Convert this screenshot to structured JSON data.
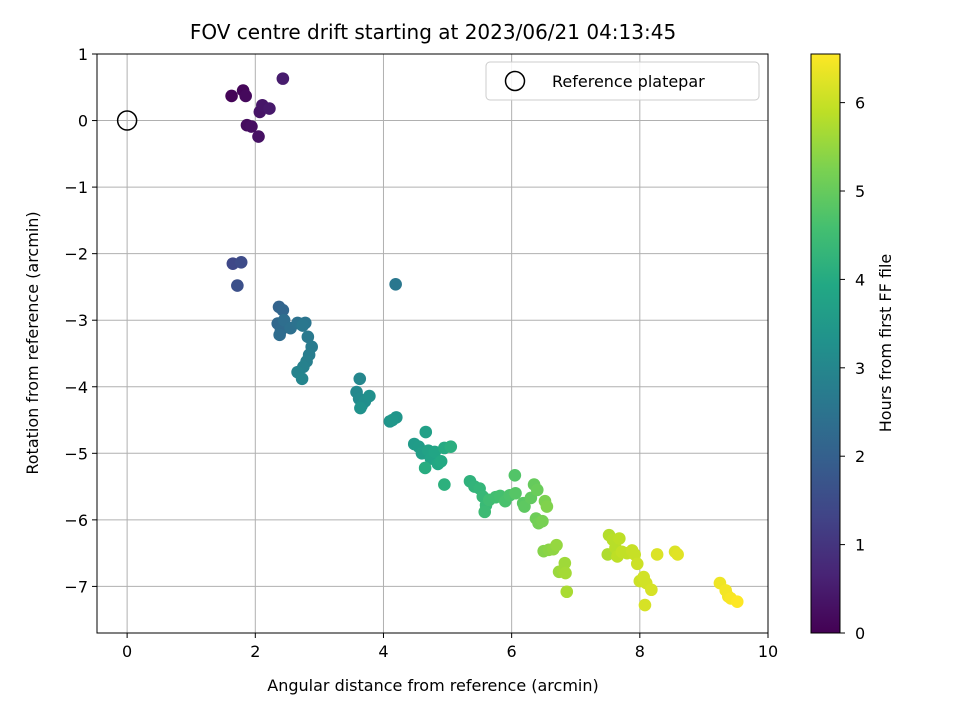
{
  "chart_data": {
    "type": "scatter",
    "title": "FOV centre drift starting at 2023/06/21 04:13:45",
    "xlabel": "Angular distance from reference (arcmin)",
    "ylabel": "Rotation from reference (arcmin)",
    "xlim": [
      -0.47,
      10.0
    ],
    "ylim": [
      -7.7,
      1.0
    ],
    "xticks": [
      "0",
      "2",
      "4",
      "6",
      "8",
      "10"
    ],
    "yticks": [
      "1",
      "0",
      "−1",
      "−2",
      "−3",
      "−4",
      "−5",
      "−6",
      "−7"
    ],
    "grid": true,
    "legend": {
      "placement": "top-right",
      "entries": [
        {
          "label": "Reference platepar",
          "marker": "open-circle"
        }
      ]
    },
    "reference_point": {
      "x": 0,
      "y": 0
    },
    "colorbar": {
      "label": "Hours from first FF file",
      "range": [
        0,
        6.55
      ],
      "ticks": [
        "0",
        "1",
        "2",
        "3",
        "4",
        "5",
        "6"
      ],
      "colormap": "viridis"
    },
    "points": [
      {
        "x": 1.63,
        "y": 0.37,
        "c": 0.05
      },
      {
        "x": 1.81,
        "y": 0.45,
        "c": 0.1
      },
      {
        "x": 1.85,
        "y": 0.37,
        "c": 0.15
      },
      {
        "x": 1.87,
        "y": -0.07,
        "c": 0.2
      },
      {
        "x": 1.94,
        "y": -0.09,
        "c": 0.25
      },
      {
        "x": 2.05,
        "y": -0.24,
        "c": 0.3
      },
      {
        "x": 2.07,
        "y": 0.13,
        "c": 0.35
      },
      {
        "x": 2.11,
        "y": 0.23,
        "c": 0.4
      },
      {
        "x": 2.22,
        "y": 0.18,
        "c": 0.45
      },
      {
        "x": 2.43,
        "y": 0.63,
        "c": 0.5
      },
      {
        "x": 1.65,
        "y": -2.15,
        "c": 1.4
      },
      {
        "x": 1.78,
        "y": -2.13,
        "c": 1.5
      },
      {
        "x": 1.72,
        "y": -2.48,
        "c": 1.6
      },
      {
        "x": 2.37,
        "y": -2.8,
        "c": 2.1
      },
      {
        "x": 2.43,
        "y": -2.85,
        "c": 2.15
      },
      {
        "x": 2.35,
        "y": -3.05,
        "c": 2.2
      },
      {
        "x": 2.4,
        "y": -3.15,
        "c": 2.25
      },
      {
        "x": 2.38,
        "y": -3.22,
        "c": 2.3
      },
      {
        "x": 2.45,
        "y": -3.0,
        "c": 2.35
      },
      {
        "x": 2.55,
        "y": -3.12,
        "c": 2.4
      },
      {
        "x": 2.66,
        "y": -3.04,
        "c": 2.45
      },
      {
        "x": 2.71,
        "y": -3.06,
        "c": 2.5
      },
      {
        "x": 2.78,
        "y": -3.04,
        "c": 2.55
      },
      {
        "x": 2.74,
        "y": -3.08,
        "c": 2.6
      },
      {
        "x": 2.82,
        "y": -3.25,
        "c": 2.65
      },
      {
        "x": 2.88,
        "y": -3.4,
        "c": 2.7
      },
      {
        "x": 2.84,
        "y": -3.52,
        "c": 2.75
      },
      {
        "x": 2.8,
        "y": -3.62,
        "c": 2.8
      },
      {
        "x": 2.75,
        "y": -3.7,
        "c": 2.85
      },
      {
        "x": 2.66,
        "y": -3.78,
        "c": 2.9
      },
      {
        "x": 2.73,
        "y": -3.88,
        "c": 2.95
      },
      {
        "x": 4.19,
        "y": -2.46,
        "c": 2.6
      },
      {
        "x": 3.63,
        "y": -3.88,
        "c": 3.0
      },
      {
        "x": 3.58,
        "y": -4.08,
        "c": 3.05
      },
      {
        "x": 3.62,
        "y": -4.18,
        "c": 3.1
      },
      {
        "x": 3.66,
        "y": -4.28,
        "c": 3.15
      },
      {
        "x": 3.71,
        "y": -4.22,
        "c": 3.2
      },
      {
        "x": 3.78,
        "y": -4.14,
        "c": 3.25
      },
      {
        "x": 3.64,
        "y": -4.32,
        "c": 3.3
      },
      {
        "x": 4.1,
        "y": -4.52,
        "c": 3.35
      },
      {
        "x": 4.2,
        "y": -4.46,
        "c": 3.4
      },
      {
        "x": 4.14,
        "y": -4.5,
        "c": 3.45
      },
      {
        "x": 4.48,
        "y": -4.86,
        "c": 3.55
      },
      {
        "x": 4.55,
        "y": -4.9,
        "c": 3.6
      },
      {
        "x": 4.6,
        "y": -5.0,
        "c": 3.65
      },
      {
        "x": 4.66,
        "y": -4.68,
        "c": 3.7
      },
      {
        "x": 4.7,
        "y": -4.96,
        "c": 3.75
      },
      {
        "x": 4.74,
        "y": -5.08,
        "c": 3.8
      },
      {
        "x": 4.8,
        "y": -4.98,
        "c": 3.85
      },
      {
        "x": 4.85,
        "y": -5.16,
        "c": 3.9
      },
      {
        "x": 4.9,
        "y": -5.12,
        "c": 3.95
      },
      {
        "x": 4.95,
        "y": -4.92,
        "c": 4.0
      },
      {
        "x": 4.65,
        "y": -5.22,
        "c": 4.05
      },
      {
        "x": 5.05,
        "y": -4.9,
        "c": 4.1
      },
      {
        "x": 4.95,
        "y": -5.47,
        "c": 4.15
      },
      {
        "x": 5.35,
        "y": -5.42,
        "c": 4.2
      },
      {
        "x": 5.42,
        "y": -5.5,
        "c": 4.25
      },
      {
        "x": 5.5,
        "y": -5.53,
        "c": 4.3
      },
      {
        "x": 5.55,
        "y": -5.65,
        "c": 4.35
      },
      {
        "x": 5.6,
        "y": -5.78,
        "c": 4.4
      },
      {
        "x": 5.58,
        "y": -5.88,
        "c": 4.45
      },
      {
        "x": 5.65,
        "y": -5.7,
        "c": 4.5
      },
      {
        "x": 5.75,
        "y": -5.66,
        "c": 4.55
      },
      {
        "x": 5.82,
        "y": -5.64,
        "c": 4.6
      },
      {
        "x": 5.9,
        "y": -5.72,
        "c": 4.65
      },
      {
        "x": 5.97,
        "y": -5.63,
        "c": 4.7
      },
      {
        "x": 6.05,
        "y": -5.33,
        "c": 4.75
      },
      {
        "x": 6.06,
        "y": -5.6,
        "c": 4.8
      },
      {
        "x": 6.18,
        "y": -5.75,
        "c": 4.85
      },
      {
        "x": 6.2,
        "y": -5.8,
        "c": 4.9
      },
      {
        "x": 6.3,
        "y": -5.67,
        "c": 4.95
      },
      {
        "x": 6.35,
        "y": -5.47,
        "c": 5.0
      },
      {
        "x": 6.4,
        "y": -5.55,
        "c": 5.05
      },
      {
        "x": 6.38,
        "y": -5.98,
        "c": 5.1
      },
      {
        "x": 6.42,
        "y": -6.05,
        "c": 5.15
      },
      {
        "x": 6.48,
        "y": -6.02,
        "c": 5.2
      },
      {
        "x": 6.52,
        "y": -5.72,
        "c": 5.25
      },
      {
        "x": 6.55,
        "y": -5.8,
        "c": 5.3
      },
      {
        "x": 6.5,
        "y": -6.47,
        "c": 5.35
      },
      {
        "x": 6.58,
        "y": -6.45,
        "c": 5.4
      },
      {
        "x": 6.65,
        "y": -6.44,
        "c": 5.45
      },
      {
        "x": 6.7,
        "y": -6.38,
        "c": 5.5
      },
      {
        "x": 6.74,
        "y": -6.78,
        "c": 5.55
      },
      {
        "x": 6.8,
        "y": -6.76,
        "c": 5.6
      },
      {
        "x": 6.83,
        "y": -6.65,
        "c": 5.6
      },
      {
        "x": 6.84,
        "y": -6.8,
        "c": 5.65
      },
      {
        "x": 6.86,
        "y": -7.08,
        "c": 5.7
      },
      {
        "x": 7.5,
        "y": -6.52,
        "c": 5.75
      },
      {
        "x": 7.52,
        "y": -6.23,
        "c": 5.8
      },
      {
        "x": 7.58,
        "y": -6.3,
        "c": 5.85
      },
      {
        "x": 7.62,
        "y": -6.42,
        "c": 5.85
      },
      {
        "x": 7.65,
        "y": -6.55,
        "c": 5.9
      },
      {
        "x": 7.68,
        "y": -6.28,
        "c": 5.9
      },
      {
        "x": 7.72,
        "y": -6.48,
        "c": 5.95
      },
      {
        "x": 7.8,
        "y": -6.5,
        "c": 5.95
      },
      {
        "x": 7.88,
        "y": -6.46,
        "c": 6.0
      },
      {
        "x": 7.92,
        "y": -6.52,
        "c": 6.0
      },
      {
        "x": 7.96,
        "y": -6.66,
        "c": 6.05
      },
      {
        "x": 8.0,
        "y": -6.92,
        "c": 6.05
      },
      {
        "x": 8.06,
        "y": -6.86,
        "c": 6.1
      },
      {
        "x": 8.1,
        "y": -6.95,
        "c": 6.1
      },
      {
        "x": 8.08,
        "y": -7.28,
        "c": 6.15
      },
      {
        "x": 8.18,
        "y": -7.05,
        "c": 6.15
      },
      {
        "x": 8.27,
        "y": -6.52,
        "c": 6.2
      },
      {
        "x": 8.55,
        "y": -6.48,
        "c": 6.2
      },
      {
        "x": 8.59,
        "y": -6.52,
        "c": 6.25
      },
      {
        "x": 9.25,
        "y": -6.95,
        "c": 6.4
      },
      {
        "x": 9.34,
        "y": -7.06,
        "c": 6.45
      },
      {
        "x": 9.38,
        "y": -7.15,
        "c": 6.45
      },
      {
        "x": 9.42,
        "y": -7.18,
        "c": 6.5
      },
      {
        "x": 9.52,
        "y": -7.23,
        "c": 6.55
      }
    ]
  }
}
